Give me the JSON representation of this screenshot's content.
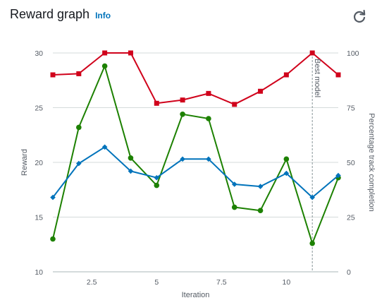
{
  "header": {
    "title": "Reward graph",
    "info": "Info",
    "refresh_icon": "refresh-icon"
  },
  "chart_data": {
    "type": "line",
    "xlabel": "Iteration",
    "ylabel": "Reward",
    "y2label": "Percentage track completion",
    "xlim": [
      1,
      12
    ],
    "ylim": [
      10,
      30
    ],
    "y2lim": [
      0,
      100
    ],
    "xticks": [
      "2.5",
      "5",
      "7.5",
      "10"
    ],
    "xtick_values": [
      2.5,
      5,
      7.5,
      10
    ],
    "yticks": [
      "10",
      "15",
      "20",
      "25",
      "30"
    ],
    "ytick_values": [
      10,
      15,
      20,
      25,
      30
    ],
    "y2ticks": [
      "0",
      "25",
      "50",
      "75",
      "100"
    ],
    "y2tick_values": [
      0,
      25,
      50,
      75,
      100
    ],
    "grid": true,
    "annotation": {
      "label": "Best model",
      "x": 11
    },
    "x": [
      1,
      2,
      3,
      4,
      5,
      6,
      7,
      8,
      9,
      10,
      11,
      12
    ],
    "series": [
      {
        "axis": "right",
        "color": "#d0021b",
        "marker": "square",
        "values": [
          90,
          90.5,
          100,
          100,
          77,
          78.5,
          81.5,
          76.5,
          82.5,
          90,
          100,
          90
        ]
      },
      {
        "axis": "left",
        "color": "#1d8102",
        "marker": "circle",
        "values": [
          13.0,
          23.2,
          28.8,
          20.4,
          17.9,
          24.4,
          24.0,
          15.9,
          15.6,
          20.3,
          12.6,
          18.6
        ]
      },
      {
        "axis": "left",
        "color": "#0073bb",
        "marker": "diamond",
        "values": [
          16.8,
          19.9,
          21.4,
          19.2,
          18.6,
          20.3,
          20.3,
          18.0,
          17.8,
          19.0,
          16.8,
          18.8
        ]
      }
    ]
  }
}
